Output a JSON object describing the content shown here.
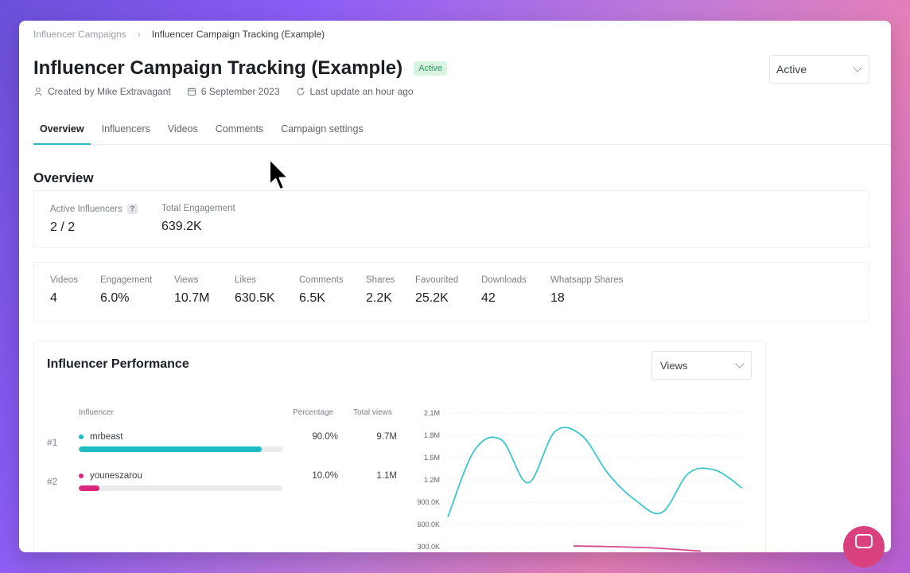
{
  "breadcrumb": {
    "parent": "Influencer Campaigns",
    "separator": "›",
    "current": "Influencer Campaign Tracking (Example)"
  },
  "header": {
    "title": "Influencer Campaign Tracking (Example)",
    "badge": "Active",
    "status_select": "Active",
    "created_by": "Created by Mike Extravagant",
    "date": "6 September 2023",
    "last_update": "Last update an hour ago"
  },
  "tabs": [
    {
      "label": "Overview",
      "active": true
    },
    {
      "label": "Influencers",
      "active": false
    },
    {
      "label": "Videos",
      "active": false
    },
    {
      "label": "Comments",
      "active": false
    },
    {
      "label": "Campaign settings",
      "active": false
    }
  ],
  "overview": {
    "title": "Overview",
    "summary": [
      {
        "label": "Active Influencers",
        "value": "2 / 2",
        "help": "?"
      },
      {
        "label": "Total Engagement",
        "value": "639.2K"
      }
    ],
    "metrics": [
      {
        "label": "Videos",
        "value": "4"
      },
      {
        "label": "Engagement",
        "value": "6.0%"
      },
      {
        "label": "Views",
        "value": "10.7M"
      },
      {
        "label": "Likes",
        "value": "630.5K"
      },
      {
        "label": "Comments",
        "value": "6.5K"
      },
      {
        "label": "Shares",
        "value": "2.2K"
      },
      {
        "label": "Favourited",
        "value": "25.2K"
      },
      {
        "label": "Downloads",
        "value": "42"
      },
      {
        "label": "Whatsapp Shares",
        "value": "18"
      }
    ]
  },
  "performance": {
    "title": "Influencer Performance",
    "metric_select": "Views",
    "columns": {
      "influencer": "Influencer",
      "percentage": "Percentage",
      "total_views": "Total views"
    },
    "rows": [
      {
        "rank": "#1",
        "name": "mrbeast",
        "percentage": "90.0%",
        "total_views": "9.7M",
        "share": 0.9,
        "color": "#1fbcc4"
      },
      {
        "rank": "#2",
        "name": "youneszarou",
        "percentage": "10.0%",
        "total_views": "1.1M",
        "share": 0.1,
        "color": "#d6297a"
      }
    ]
  },
  "chart_data": {
    "type": "line",
    "y_ticks": [
      "2.1M",
      "1.8M",
      "1.5M",
      "1.2M",
      "900.0K",
      "600.0K",
      "300.0K"
    ],
    "ylim": [
      300000,
      2100000
    ],
    "series": [
      {
        "name": "mrbeast",
        "color": "#3cc7c9",
        "values": [
          700000,
          1600000,
          1740000,
          1160000,
          1850000,
          1800000,
          1280000,
          930000,
          760000,
          1290000,
          1330000,
          1090000
        ]
      },
      {
        "name": "youneszarou",
        "color": "#d64a90",
        "values": [
          310000,
          300000,
          280000,
          240000
        ]
      }
    ]
  },
  "colors": {
    "accent": "#28b9c4",
    "badge_bg": "#d9f3e3",
    "badge_text": "#2f9a5c",
    "chat_button": "#d9417e"
  },
  "icons": {
    "user": "user-icon",
    "calendar": "calendar-icon",
    "refresh": "refresh-icon",
    "chat": "chat-icon"
  }
}
